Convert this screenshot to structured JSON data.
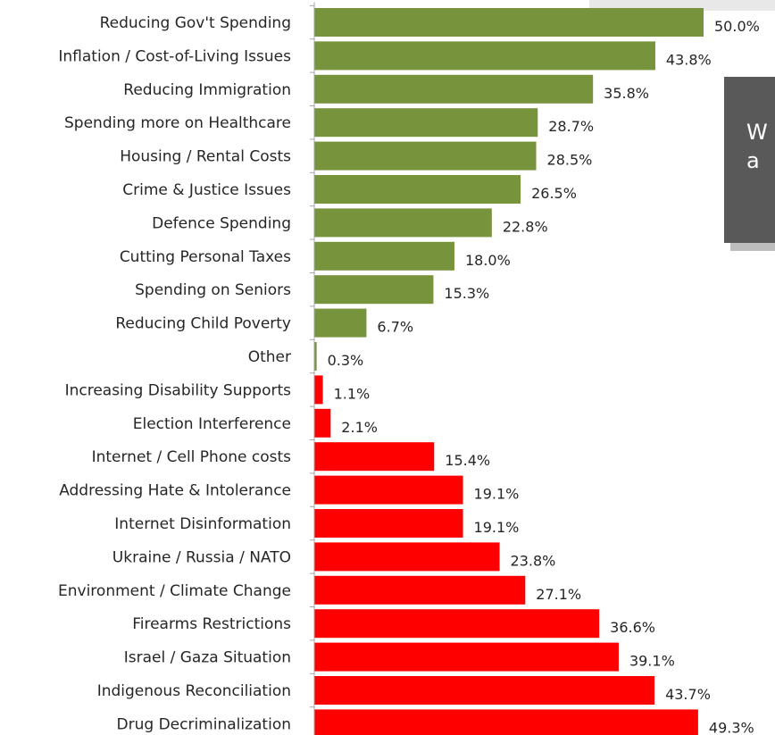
{
  "callout": {
    "line1": "W",
    "line2": "a"
  },
  "colors": {
    "positive": "#77933c",
    "negative": "#ff0000",
    "axis": "#a6a6a6"
  },
  "chart_data": {
    "type": "bar",
    "orientation": "horizontal",
    "xlim": [
      0,
      50
    ],
    "categories": [
      "Reducing Gov't Spending",
      "Inflation / Cost-of-Living Issues",
      "Reducing Immigration",
      "Spending more on Healthcare",
      "Housing / Rental Costs",
      "Crime & Justice Issues",
      "Defence Spending",
      "Cutting Personal Taxes",
      "Spending on Seniors",
      "Reducing Child Poverty",
      "Other",
      "Increasing Disability Supports",
      "Election Interference",
      "Internet / Cell Phone costs",
      "Addressing Hate & Intolerance",
      "Internet Disinformation",
      "Ukraine / Russia / NATO",
      "Environment / Climate Change",
      "Firearms Restrictions",
      "Israel / Gaza Situation",
      "Indigenous Reconciliation",
      "Drug Decriminalization"
    ],
    "values": [
      50.0,
      43.8,
      35.8,
      28.7,
      28.5,
      26.5,
      22.8,
      18.0,
      15.3,
      6.7,
      0.3,
      1.1,
      2.1,
      15.4,
      19.1,
      19.1,
      23.8,
      27.1,
      36.6,
      39.1,
      43.7,
      49.3
    ],
    "value_labels": [
      "50.0%",
      "43.8%",
      "35.8%",
      "28.7%",
      "28.5%",
      "26.5%",
      "22.8%",
      "18.0%",
      "15.3%",
      "6.7%",
      "0.3%",
      "1.1%",
      "2.1%",
      "15.4%",
      "19.1%",
      "19.1%",
      "23.8%",
      "27.1%",
      "36.6%",
      "39.1%",
      "43.7%",
      "49.3%"
    ],
    "bar_colors": [
      "green",
      "green",
      "green",
      "green",
      "green",
      "green",
      "green",
      "green",
      "green",
      "green",
      "green",
      "red",
      "red",
      "red",
      "red",
      "red",
      "red",
      "red",
      "red",
      "red",
      "red",
      "red"
    ]
  }
}
